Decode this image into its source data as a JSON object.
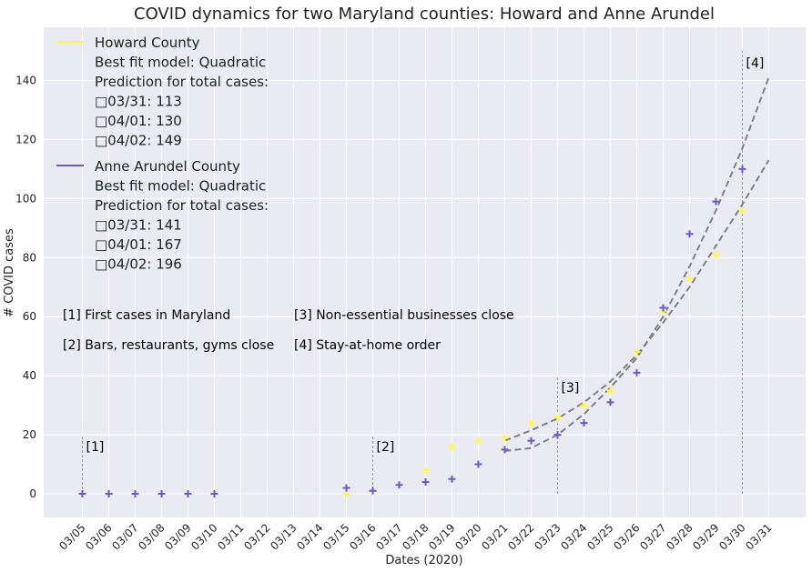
{
  "chart_data": {
    "type": "scatter",
    "title": "COVID dynamics for two Maryland counties: Howard and Anne Arundel",
    "xlabel": "Dates (2020)",
    "ylabel": "# COVID cases",
    "ylim": [
      -8,
      158
    ],
    "yticks": [
      0,
      20,
      40,
      60,
      80,
      100,
      120,
      140
    ],
    "categories": [
      "03/05",
      "03/06",
      "03/07",
      "03/08",
      "03/09",
      "03/10",
      "03/11",
      "03/12",
      "03/13",
      "03/14",
      "03/15",
      "03/16",
      "03/17",
      "03/18",
      "03/19",
      "03/20",
      "03/21",
      "03/22",
      "03/23",
      "03/24",
      "03/25",
      "03/26",
      "03/27",
      "03/28",
      "03/29",
      "03/30",
      "03/31"
    ],
    "grid": true,
    "series": [
      {
        "name": "Howard County",
        "color": "#ffff33",
        "marker": "plus",
        "x": [
          "03/15",
          "03/16",
          "03/17",
          "03/18",
          "03/19",
          "03/20",
          "03/21",
          "03/22",
          "03/23",
          "03/24",
          "03/25",
          "03/26",
          "03/27",
          "03/28",
          "03/29",
          "03/30"
        ],
        "values": [
          0,
          1,
          3,
          8,
          16,
          18,
          19,
          24,
          26,
          30,
          35,
          48,
          62,
          73,
          81,
          96
        ]
      },
      {
        "name": "Anne Arundel County",
        "color": "#6a5acd",
        "marker": "plus",
        "x": [
          "03/05",
          "03/06",
          "03/07",
          "03/08",
          "03/09",
          "03/10",
          "03/15",
          "03/16",
          "03/17",
          "03/18",
          "03/19",
          "03/20",
          "03/21",
          "03/22",
          "03/23",
          "03/24",
          "03/25",
          "03/26",
          "03/27",
          "03/28",
          "03/29",
          "03/30"
        ],
        "values": [
          0,
          0,
          0,
          0,
          0,
          0,
          2,
          1,
          3,
          4,
          5,
          10,
          15,
          18,
          20,
          24,
          31,
          41,
          63,
          88,
          99,
          110
        ]
      }
    ],
    "fits": [
      {
        "series": "Howard County",
        "color": "#808080",
        "x": [
          "03/21",
          "03/22",
          "03/23",
          "03/24",
          "03/25",
          "03/26",
          "03/27",
          "03/28",
          "03/29",
          "03/30",
          "03/31"
        ],
        "values": [
          18,
          21.5,
          25.5,
          31,
          38,
          47,
          58,
          70,
          84,
          98,
          113
        ]
      },
      {
        "series": "Anne Arundel County",
        "color": "#808080",
        "x": [
          "03/21",
          "03/22",
          "03/23",
          "03/24",
          "03/25",
          "03/26",
          "03/27",
          "03/28",
          "03/29",
          "03/30",
          "03/31"
        ],
        "values": [
          14.5,
          15.5,
          20,
          27,
          36,
          46,
          60,
          77,
          96,
          117,
          141
        ]
      }
    ],
    "event_lines": [
      {
        "x": "03/05",
        "top": 20,
        "label": "[1]"
      },
      {
        "x": "03/16",
        "top": 20,
        "label": "[2]"
      },
      {
        "x": "03/23",
        "top": 40,
        "label": "[3]"
      },
      {
        "x": "03/30",
        "top": 150,
        "label": "[4]"
      }
    ],
    "legend": {
      "placement": "top-left",
      "entries": [
        {
          "name": "Howard County",
          "color": "#ffff33",
          "lines": [
            "Best fit model: Quadratic",
            "Prediction for total cases:",
            "□03/31: 113",
            "□04/01: 130",
            "□04/02: 149"
          ]
        },
        {
          "name": "Anne Arundel County",
          "color": "#6a5acd",
          "lines": [
            "Best fit model: Quadratic",
            "Prediction for total cases:",
            "□03/31: 141",
            "□04/01: 167",
            "□04/02: 196"
          ]
        }
      ]
    },
    "annotations": [
      "[1] First cases in Maryland",
      "[2] Bars, restaurants, gyms close",
      "[3] Non-essential businesses close",
      "[4] Stay-at-home order"
    ]
  }
}
